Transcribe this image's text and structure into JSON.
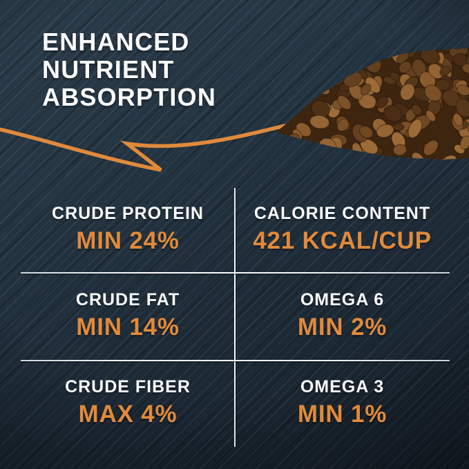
{
  "heading": {
    "line1": "ENHANCED",
    "line2": "NUTRIENT",
    "line3": "ABSORPTION"
  },
  "stats": [
    {
      "label": "CRUDE PROTEIN",
      "value": "MIN 24%"
    },
    {
      "label": "CALORIE CONTENT",
      "value": "421 KCAL/CUP"
    },
    {
      "label": "CRUDE FAT",
      "value": "MIN 14%"
    },
    {
      "label": "OMEGA 6",
      "value": "MIN 2%"
    },
    {
      "label": "CRUDE FIBER",
      "value": "MAX 4%"
    },
    {
      "label": "OMEGA 3",
      "value": "MIN 1%"
    }
  ],
  "colors": {
    "background": "#20303d",
    "accent_orange": "#e08a3c",
    "text_white": "#fcfdfe",
    "divider": "#f2f6f8",
    "kibble_dark": [
      "#4a2d14",
      "#573719",
      "#64401e",
      "#4f3216"
    ],
    "kibble_light": [
      "#7c5128",
      "#8a5b2e",
      "#946434",
      "#6f4722",
      "#9c6b38"
    ]
  },
  "icons": {
    "arrow": "orange-hand-drawn-swoosh-arrow",
    "kibble": "brown-dog-food-kibble-pile-photo"
  }
}
